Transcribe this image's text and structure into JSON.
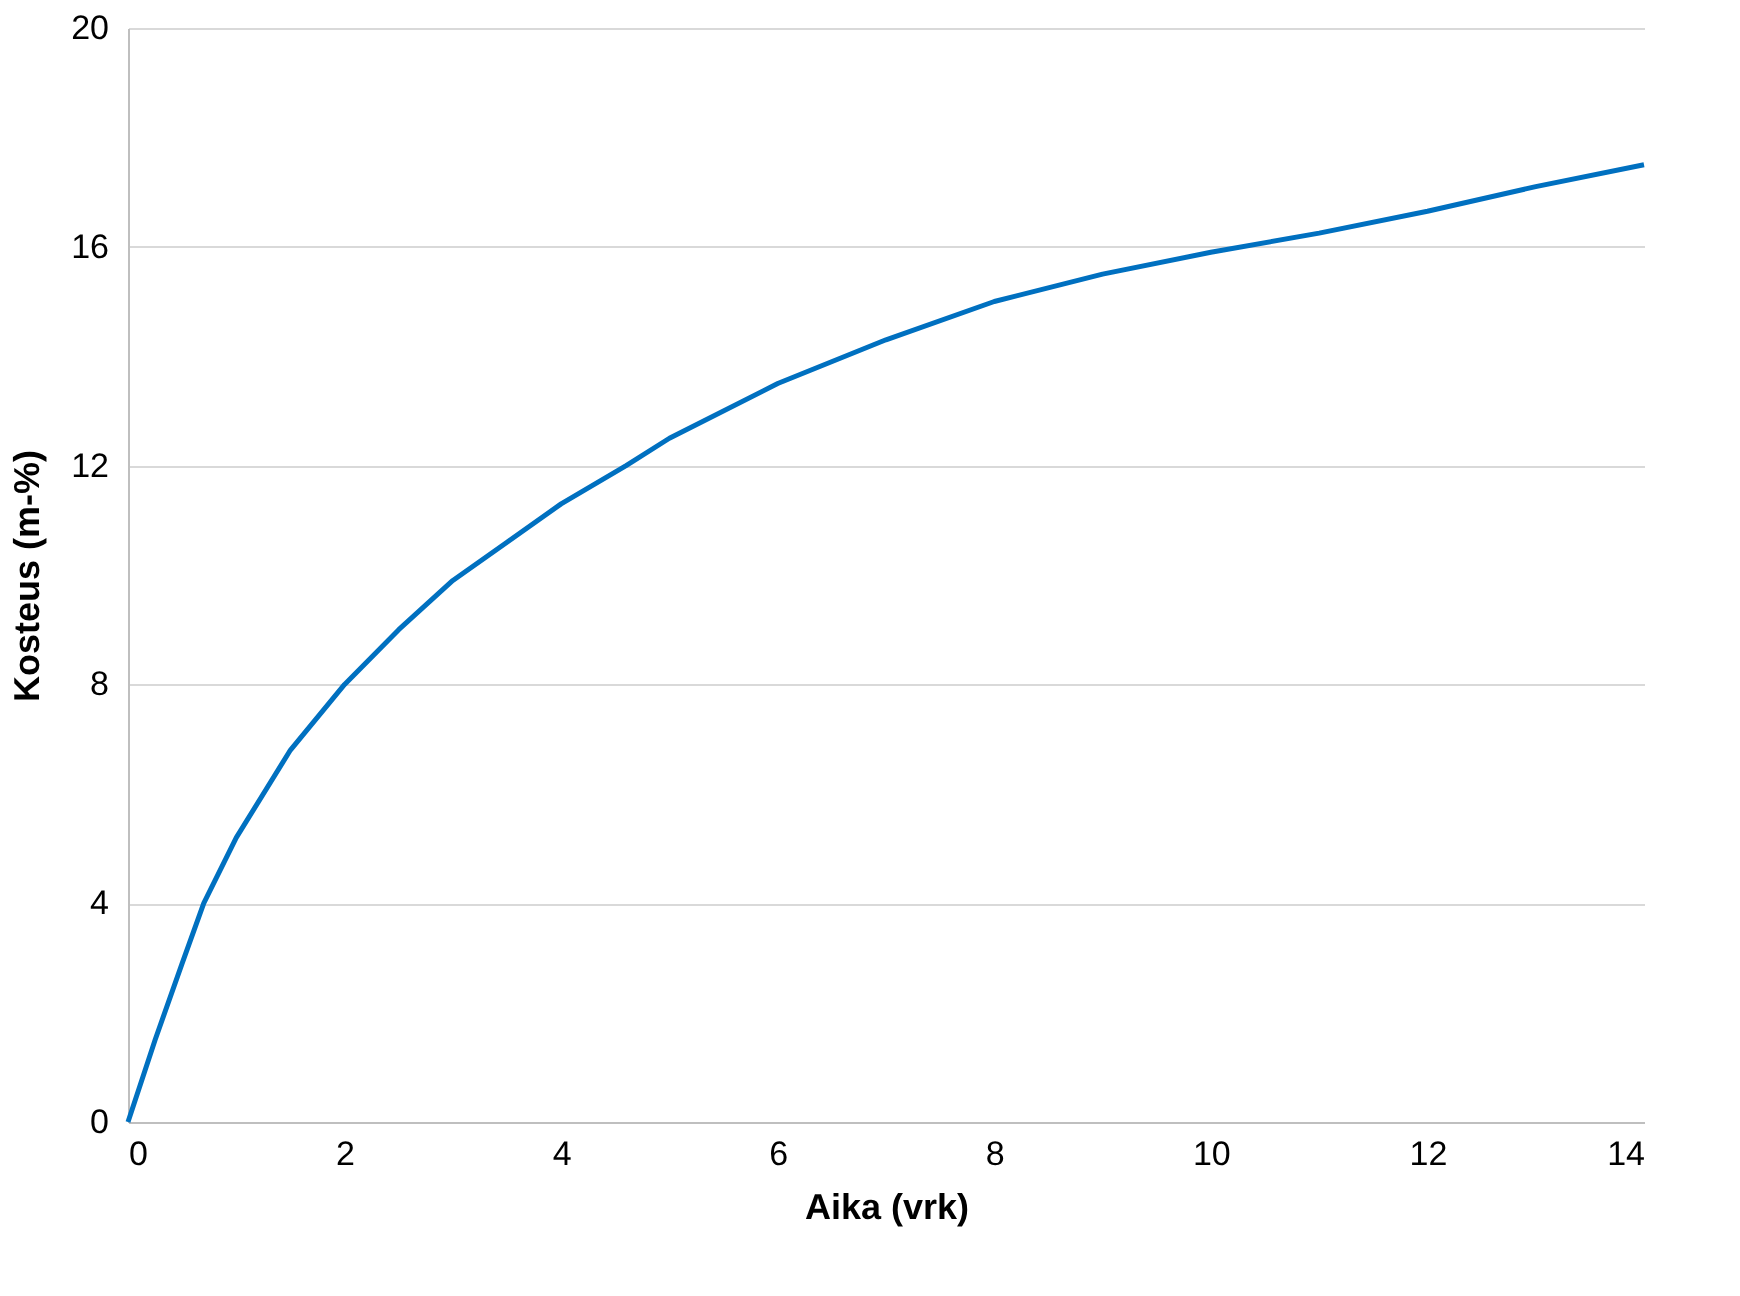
{
  "chart_data": {
    "type": "line",
    "xlabel": "Aika (vrk)",
    "ylabel": "Kosteus (m-%)",
    "x": [
      0,
      0.25,
      0.5,
      0.7,
      1,
      1.5,
      2,
      2.5,
      3,
      3.5,
      4,
      4.6,
      5,
      6,
      7,
      8,
      9,
      10,
      11,
      12,
      13,
      14
    ],
    "series": [
      {
        "color": "#0070c0",
        "values": [
          0,
          1.5,
          2.9,
          4.0,
          5.2,
          6.8,
          8.0,
          9.0,
          9.9,
          10.6,
          11.3,
          12.0,
          12.5,
          13.5,
          14.3,
          15.0,
          15.5,
          15.9,
          16.25,
          16.65,
          17.1,
          17.5
        ]
      }
    ],
    "xlim": [
      0,
      14
    ],
    "xticks": [
      0,
      2,
      4,
      6,
      8,
      10,
      12,
      14
    ],
    "ylim": [
      0,
      20
    ],
    "yticks": [
      0,
      4,
      8,
      12,
      16,
      20
    ],
    "grid": "y",
    "legend": false,
    "marker": "none",
    "line_style": "solid"
  }
}
